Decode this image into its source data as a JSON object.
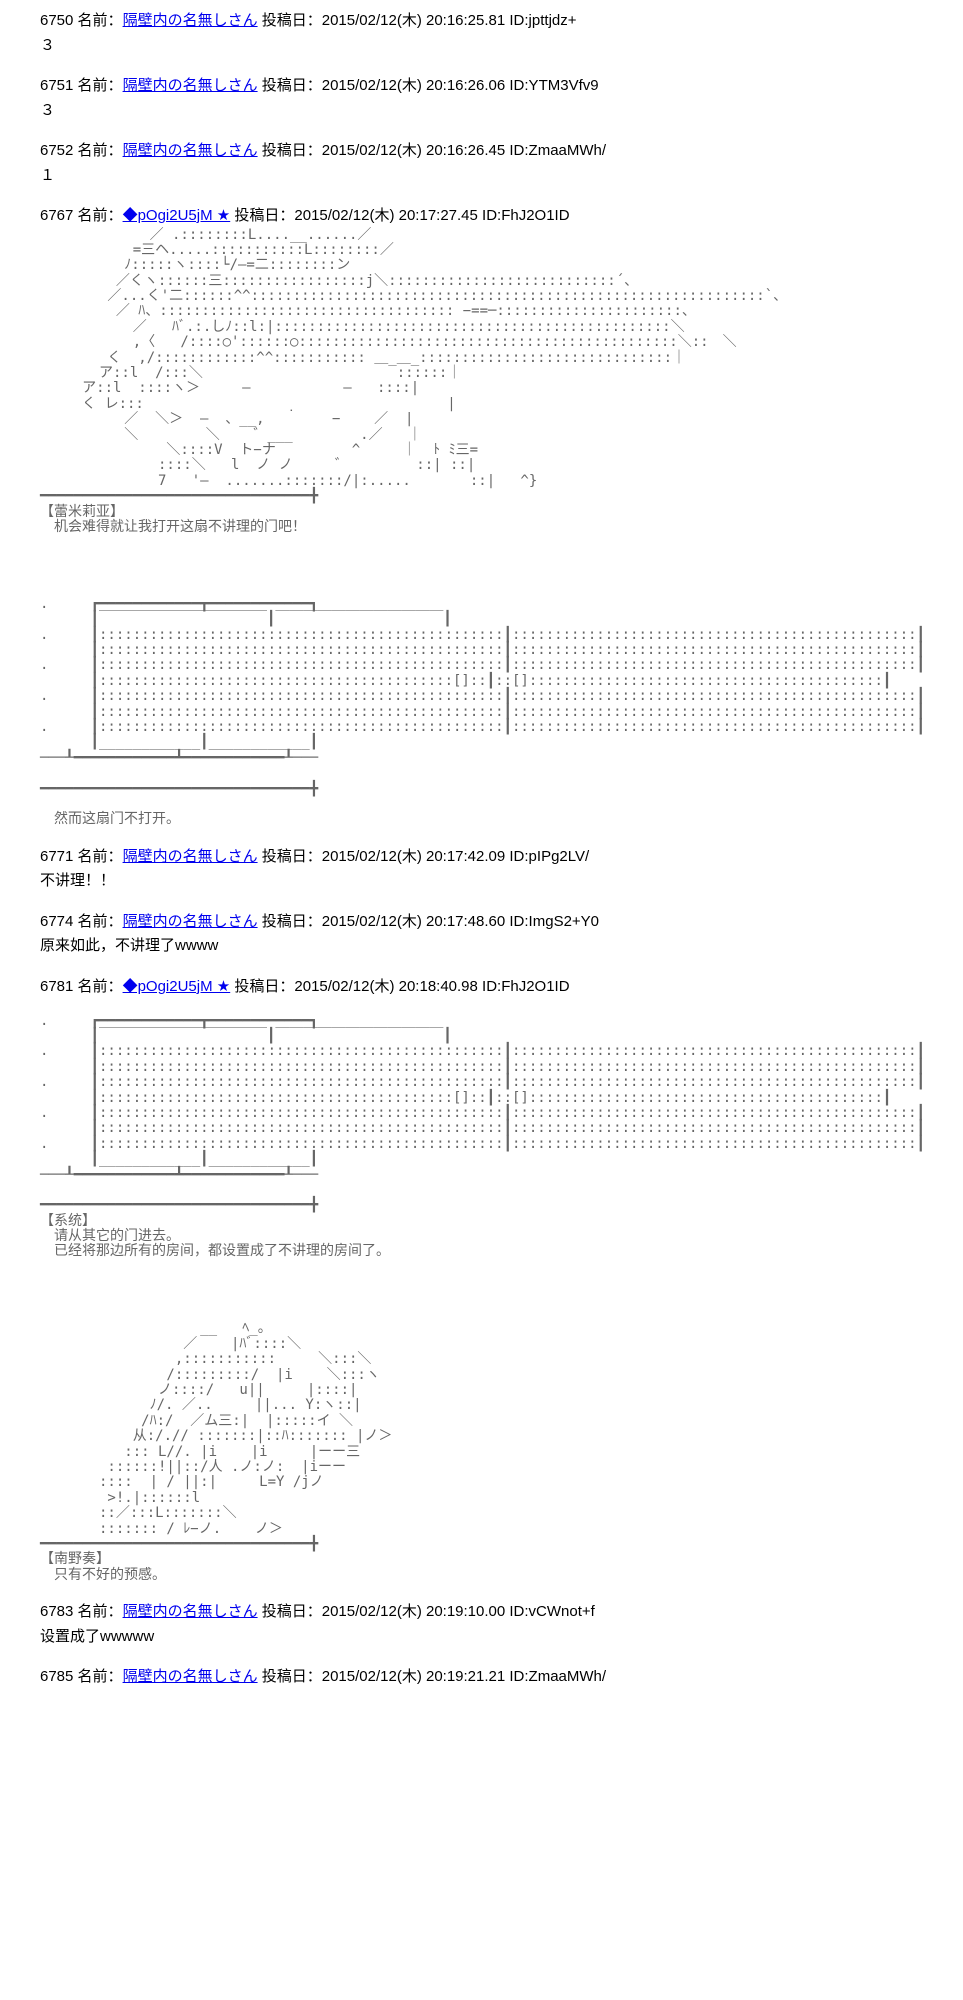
{
  "posts": [
    {
      "num": "6750",
      "name": "隔壁内の名無しさん",
      "date": "2015/02/12(木) 20:16:25.81",
      "id": "ID:jpttjdz+",
      "body": "３"
    },
    {
      "num": "6751",
      "name": "隔壁内の名無しさん",
      "date": "2015/02/12(木) 20:16:26.06",
      "id": "ID:YTM3Vfv9",
      "body": "３"
    },
    {
      "num": "6752",
      "name": "隔壁内の名無しさん",
      "date": "2015/02/12(木) 20:16:26.45",
      "id": "ID:ZmaaMWh/",
      "body": "１"
    },
    {
      "num": "6767",
      "name": "◆pOgi2U5jM ★",
      "date": "2015/02/12(木) 20:17:27.45",
      "id": "ID:FhJ2O1ID",
      "aa": "             ／ .::::::::L....__......／\n           =三ヘ.....:::::::::::L::::::::／\n          ﾉ:::::ヽ::::└/—=二::::::::ン\n         ／くヽ::::::三:::::::::::::::::j＼:::::::::::::::::::::::::::´、\n        ／...く'二::::::^^:::::::::::::::::::::::::::::::::::::::::::::::::::::::::::::`、\n         ／ ﾊ、::::::::::::::::::::::::::::::::::: −==─::::::::::::::::::::::、\n           ／   ﾊﾞ.:.しﾉ::l:|:::::::::::::::::::::::::::::::::::::::::::::::＼\n           ,〈   /::::○'::::::○:::::::::::::::::::::::::::::::::::::::::::::＼::　＼\n        く  ,/::::::::::::^^::::::::::: ＿_＿_::::::::::::::::::::::::::::::｜\n       ア::l  /:::＼                       ::::::｜\n     ア::l  ::::ヽ＞     —           —   ::::|\n     く レ:::                 ̣                   |\n          ／  ＼＞  —  、__,        −    ／  |\n          ＼        ＼    ゛___        .／   ｜\n               ＼::::V  ト−ナ         ^     ｜  ﾄ ﾐ三=\n              ::::＼   l  ノ ノ     ゛        ::| ::|\n              7   '—  .......:::::::/|:.....       ::|   ^}\n━━━━━━━━━━━━━━━━━━━━━━━━━━━━━━━━╋\n【蕾米莉亚】\n　机会难得就让我打开这扇不讲理的门吧！\n\n\n\n\n.     ┏━━━━━━━━━━━━┳━━━━━━━━━━━━┓\n      ┃￣￣￣￣￣￣￣￣￣￣￣￣┃￣￣￣￣￣￣￣￣￣￣￣￣┃\n.     ┃::::::::::::::::::::::::::::::::::::::::::::::::┃::::::::::::::::::::::::::::::::::::::::::::::::┃\n      ┃::::::::::::::::::::::::::::::::::::::::::::::::┃::::::::::::::::::::::::::::::::::::::::::::::::┃\n.     ┃::::::::::::::::::::::::::::::::::::::::::::::::┃::::::::::::::::::::::::::::::::::::::::::::::::┃\n      ┃::::::::::::::::::::::::::::::::::::::::::[]::┃::[]::::::::::::::::::::::::::::::::::::::::::┃\n.     ┃::::::::::::::::::::::::::::::::::::::::::::::::┃::::::::::::::::::::::::::::::::::::::::::::::::┃\n      ┃::::::::::::::::::::::::::::::::::::::::::::::::┃::::::::::::::::::::::::::::::::::::::::::::::::┃\n.     ┃::::::::::::::::::::::::::::::::::::::::::::::::┃::::::::::::::::::::::::::::::::::::::::::::::::┃\n      ┃____________┃____________┃\n───┸━━━━━━━━━━━━┻━━━━━━━━━━━━┸───\n\n━━━━━━━━━━━━━━━━━━━━━━━━━━━━━━━━╋\n\n　然而这扇门不打开。"
    },
    {
      "num": "6771",
      "name": "隔壁内の名無しさん",
      "date": "2015/02/12(木) 20:17:42.09",
      "id": "ID:pIPg2LV/",
      "body": "不讲理！！"
    },
    {
      "num": "6774",
      "name": "隔壁内の名無しさん",
      "date": "2015/02/12(木) 20:17:48.60",
      "id": "ID:ImgS2+Y0",
      "body": "原来如此，不讲理了wwww"
    },
    {
      "num": "6781",
      "name": "◆pOgi2U5jM ★",
      "date": "2015/02/12(木) 20:18:40.98",
      "id": "ID:FhJ2O1ID",
      "aa": "\n.     ┏━━━━━━━━━━━━┳━━━━━━━━━━━━┓\n      ┃￣￣￣￣￣￣￣￣￣￣￣￣┃￣￣￣￣￣￣￣￣￣￣￣￣┃\n.     ┃::::::::::::::::::::::::::::::::::::::::::::::::┃::::::::::::::::::::::::::::::::::::::::::::::::┃\n      ┃::::::::::::::::::::::::::::::::::::::::::::::::┃::::::::::::::::::::::::::::::::::::::::::::::::┃\n.     ┃::::::::::::::::::::::::::::::::::::::::::::::::┃::::::::::::::::::::::::::::::::::::::::::::::::┃\n      ┃::::::::::::::::::::::::::::::::::::::::::[]::┃::[]::::::::::::::::::::::::::::::::::::::::::┃\n.     ┃::::::::::::::::::::::::::::::::::::::::::::::::┃::::::::::::::::::::::::::::::::::::::::::::::::┃\n      ┃::::::::::::::::::::::::::::::::::::::::::::::::┃::::::::::::::::::::::::::::::::::::::::::::::::┃\n.     ┃::::::::::::::::::::::::::::::::::::::::::::::::┃::::::::::::::::::::::::::::::::::::::::::::::::┃\n      ┃____________┃____________┃\n───┸━━━━━━━━━━━━┻━━━━━━━━━━━━┸───\n\n━━━━━━━━━━━━━━━━━━━━━━━━━━━━━━━━╋\n【系统】\n　请从其它的门进去。\n　已经将那边所有的房间，都设置成了不讲理的房间了。\n\n\n\n\n                   __   ﾍ_。\n                 ／    |ﾊﾞ::::＼\n                ,:::::::::::     ＼:::＼\n               /:::::::::/  |i    ＼:::ヽ\n              ノ::::/   u||     |::::|\n             ﾉ/. ／..     ||... Y:ヽ::|\n            /ﾊ:/  ／ム三:|  |:::::イ ＼\n           从:/.// :::::::|::ﾊ::::::: |ノ＞\n          ::: L//. |i    |i     |ーー三\n        ::::::!||::/人 .ノ:ノ:  |iーー\n       ::::  | / ||:|     L=Y /jノ\n        >!.|::::::l\n       ::／:::L:::::::＼\n       ::::::: / ﾚ−ノ.    ノ＞\n━━━━━━━━━━━━━━━━━━━━━━━━━━━━━━━━╋\n【南野奏】\n　只有不好的预感。"
    },
    {
      "num": "6783",
      "name": "隔壁内の名無しさん",
      "date": "2015/02/12(木) 20:19:10.00",
      "id": "ID:vCWnot+f",
      "body": "设置成了wwwww"
    },
    {
      "num": "6785",
      "name": "隔壁内の名無しさん",
      "date": "2015/02/12(木) 20:19:21.21",
      "id": "ID:ZmaaMWh/",
      "body": ""
    }
  ],
  "labels": {
    "name_label": "名前：",
    "date_label": "投稿日：",
    "name_link_color": "#0000ee"
  }
}
